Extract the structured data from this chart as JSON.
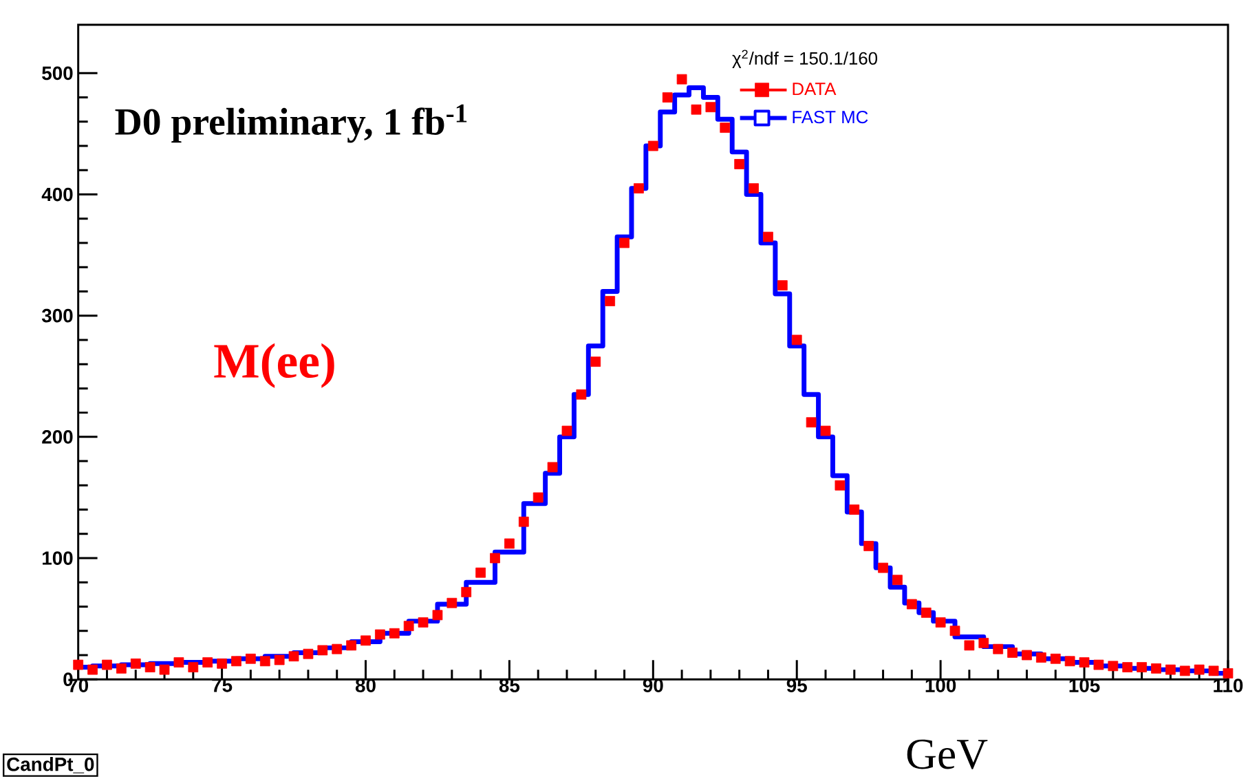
{
  "chart_data": {
    "type": "step",
    "xlabel": "GeV",
    "xlim": [
      70,
      110
    ],
    "xticks": [
      70,
      75,
      80,
      85,
      90,
      95,
      100,
      105,
      110
    ],
    "ylim": [
      0,
      540
    ],
    "yticks": [
      0,
      100,
      200,
      300,
      400,
      500
    ],
    "grid": false,
    "legend": "top",
    "annotations": [
      "D0 preliminary, 1 fb$^{-1}$",
      "M(ee)",
      "χ$^{2}$/ndf = 150.1/160",
      "CandPt_0"
    ],
    "series": [
      {
        "name": "DATA",
        "type": "scatter",
        "marker": "square",
        "color": "#ff0000",
        "x": [
          70,
          70.5,
          71,
          71.5,
          72,
          72.5,
          73,
          73.5,
          74,
          74.5,
          75,
          75.5,
          76,
          76.5,
          77,
          77.5,
          78,
          78.5,
          79,
          79.5,
          80,
          80.5,
          81,
          81.5,
          82,
          82.5,
          83,
          83.5,
          84,
          84.5,
          85,
          85.5,
          86,
          86.5,
          87,
          87.5,
          88,
          88.5,
          89,
          89.5,
          90,
          90.5,
          91,
          91.5,
          92,
          92.5,
          93,
          93.5,
          94,
          94.5,
          95,
          95.5,
          96,
          96.5,
          97,
          97.5,
          98,
          98.5,
          99,
          99.5,
          100,
          100.5,
          101,
          101.5,
          102,
          102.5,
          103,
          103.5,
          104,
          104.5,
          105,
          105.5,
          106,
          106.5,
          107,
          107.5,
          108,
          108.5,
          109,
          109.5,
          110
        ],
        "values": [
          12,
          8,
          12,
          9,
          13,
          10,
          8,
          14,
          10,
          14,
          13,
          15,
          17,
          15,
          16,
          19,
          21,
          24,
          25,
          28,
          32,
          37,
          38,
          44,
          47,
          53,
          63,
          72,
          88,
          100,
          112,
          130,
          150,
          175,
          205,
          235,
          262,
          312,
          360,
          405,
          440,
          480,
          495,
          470,
          472,
          455,
          425,
          405,
          365,
          325,
          280,
          212,
          205,
          160,
          140,
          110,
          92,
          82,
          62,
          55,
          47,
          40,
          28,
          30,
          25,
          22,
          20,
          18,
          17,
          15,
          14,
          12,
          11,
          10,
          10,
          9,
          8,
          7,
          8,
          7,
          5
        ]
      },
      {
        "name": "FAST MC",
        "color": "#0000ff",
        "x": [
          70,
          71,
          72,
          73,
          74,
          75,
          76,
          77,
          78,
          79,
          80,
          81,
          82,
          83,
          84,
          85,
          86,
          86.5,
          87,
          87.5,
          88,
          88.5,
          89,
          89.5,
          90,
          90.5,
          91,
          91.5,
          92,
          92.5,
          93,
          93.5,
          94,
          94.5,
          95,
          95.5,
          96,
          96.5,
          97,
          97.5,
          98,
          98.5,
          99,
          99.5,
          100,
          101,
          102,
          103,
          104,
          105,
          106,
          107,
          108,
          109,
          110
        ],
        "values": [
          10,
          11,
          12,
          13,
          14,
          15,
          17,
          19,
          22,
          26,
          31,
          38,
          48,
          62,
          80,
          105,
          145,
          170,
          200,
          235,
          275,
          320,
          365,
          405,
          440,
          468,
          482,
          488,
          480,
          462,
          435,
          400,
          360,
          318,
          275,
          235,
          200,
          168,
          138,
          112,
          92,
          76,
          63,
          55,
          48,
          35,
          27,
          21,
          17,
          14,
          11,
          9,
          8,
          7,
          5
        ]
      }
    ]
  }
}
